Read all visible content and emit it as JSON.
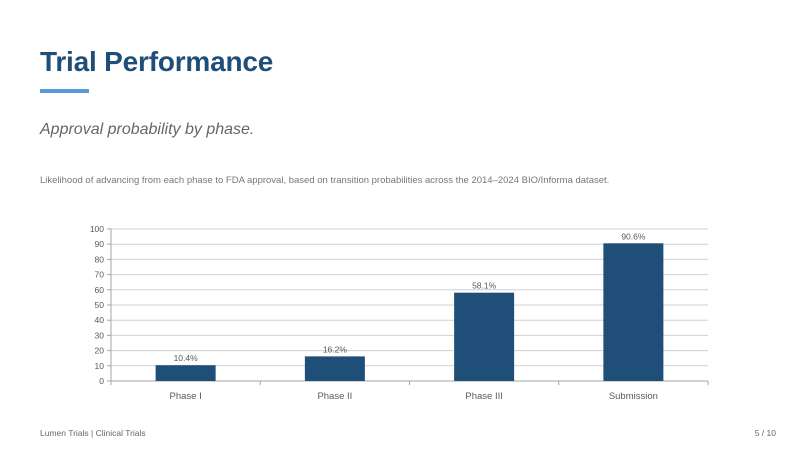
{
  "slide": {
    "title": "Trial Performance",
    "subtitle": "Approval probability by phase.",
    "description": "Likelihood of advancing from each phase to FDA approval, based on transition probabilities across the 2014–2024 BIO/Informa dataset."
  },
  "footer": {
    "left": "Lumen Trials  |  Clinical Trials",
    "page": "5 / 10"
  },
  "colors": {
    "title": "#1f4e79",
    "accent_rule": "#5b9bd5",
    "bar": "#1f4e79",
    "grid": "#d0d0d0",
    "axis_text": "#595959"
  },
  "chart_data": {
    "type": "bar",
    "categories": [
      "Phase I",
      "Phase II",
      "Phase III",
      "Submission"
    ],
    "values": [
      10.4,
      16.2,
      58.1,
      90.6
    ],
    "data_labels": [
      "10.4%",
      "16.2%",
      "58.1%",
      "90.6%"
    ],
    "title": "",
    "xlabel": "",
    "ylabel": "",
    "ylim": [
      0,
      100
    ],
    "yticks": [
      0,
      10,
      20,
      30,
      40,
      50,
      60,
      70,
      80,
      90,
      100
    ],
    "grid": true,
    "legend": "none"
  }
}
